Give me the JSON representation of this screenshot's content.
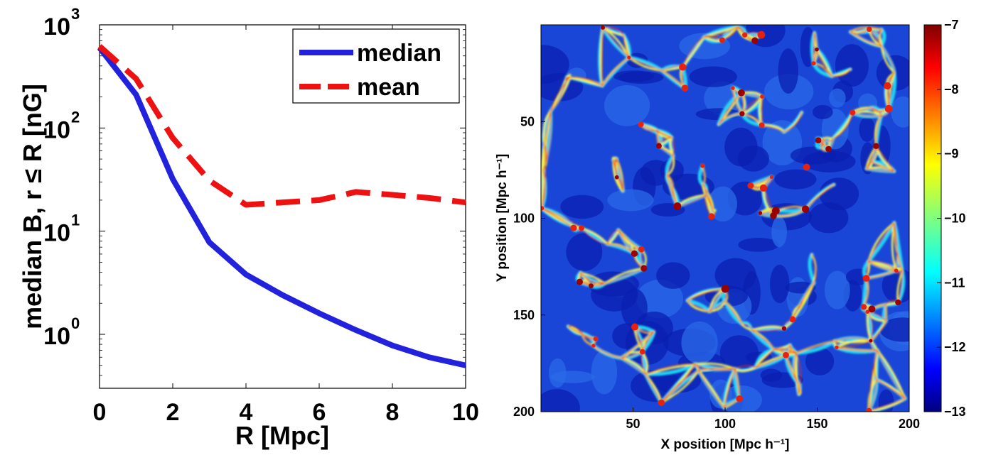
{
  "chart_data": [
    {
      "type": "line",
      "xlabel": "R [Mpc]",
      "ylabel": "median B, r ≤ R [nG]",
      "xlim": [
        0,
        10
      ],
      "ylim": [
        0.3,
        1000
      ],
      "yscale": "log",
      "x_ticks": [
        "0",
        "2",
        "4",
        "6",
        "8",
        "10"
      ],
      "y_ticks": [
        {
          "base": "10",
          "exp": "0"
        },
        {
          "base": "10",
          "exp": "1"
        },
        {
          "base": "10",
          "exp": "2"
        },
        {
          "base": "10",
          "exp": "3"
        }
      ],
      "legend_position": "top-right",
      "x": [
        0,
        1,
        2,
        3,
        4,
        5,
        6,
        7,
        8,
        9,
        10
      ],
      "series": [
        {
          "name": "median",
          "color": "#2222dd",
          "style": "solid",
          "values": [
            600,
            210,
            32,
            7.8,
            3.8,
            2.4,
            1.6,
            1.1,
            0.78,
            0.6,
            0.5
          ]
        },
        {
          "name": "mean",
          "color": "#ee1111",
          "style": "dashed",
          "values": [
            620,
            300,
            80,
            31,
            18,
            19,
            20,
            24,
            22.5,
            21,
            19
          ]
        }
      ]
    },
    {
      "type": "heatmap",
      "xlabel": "X position [Mpc h⁻¹]",
      "ylabel": "Y position [Mpc h⁻¹]",
      "xlim": [
        0,
        200
      ],
      "ylim": [
        200,
        0
      ],
      "x_ticks": [
        "50",
        "100",
        "150",
        "200"
      ],
      "y_ticks": [
        "50",
        "100",
        "150",
        "200"
      ],
      "colormap": "jet",
      "colorbar_range": [
        -13,
        -7
      ],
      "colorbar_ticks": [
        "−7",
        "−8",
        "−9",
        "−10",
        "−11",
        "−12",
        "−13"
      ]
    }
  ]
}
